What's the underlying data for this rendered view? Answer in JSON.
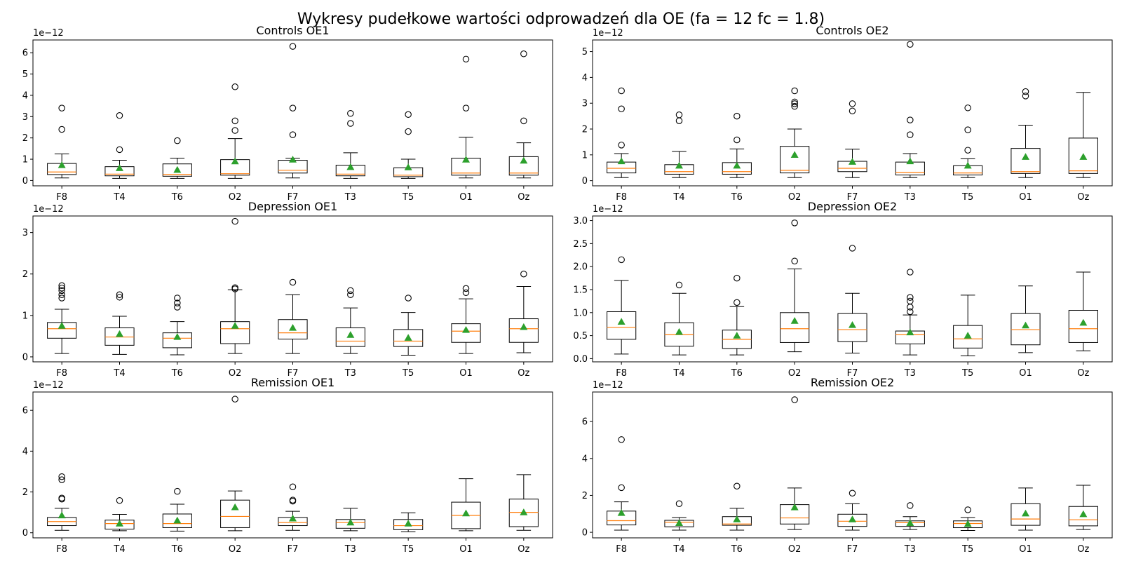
{
  "figure": {
    "title": "Wykresy pudełkowe wartości odprowadzeń dla OE (fa = 12 fc = 1.8)"
  },
  "colors": {
    "box": "#000000",
    "median": "#ff7f0e",
    "mean": "#2ca02c",
    "flier": "#000000"
  },
  "chart_data": [
    {
      "type": "box",
      "title": "Controls OE1",
      "offset_label": "1e−12",
      "categories": [
        "F8",
        "T4",
        "T6",
        "O2",
        "F7",
        "T3",
        "T5",
        "O1",
        "Oz"
      ],
      "ylim": [
        -0.25,
        6.6
      ],
      "yticks": [
        0,
        1,
        2,
        3,
        4,
        5,
        6
      ],
      "ytick_labels": [
        "0",
        "1",
        "2",
        "3",
        "4",
        "5",
        "6"
      ],
      "boxes": [
        {
          "whislo": 0.12,
          "q1": 0.28,
          "med": 0.4,
          "q3": 0.8,
          "whishi": 1.25,
          "mean": 0.72,
          "fliers": [
            2.4,
            3.4
          ]
        },
        {
          "whislo": 0.1,
          "q1": 0.22,
          "med": 0.3,
          "q3": 0.65,
          "whishi": 0.95,
          "mean": 0.58,
          "fliers": [
            1.45,
            3.05
          ]
        },
        {
          "whislo": 0.1,
          "q1": 0.2,
          "med": 0.28,
          "q3": 0.78,
          "whishi": 1.05,
          "mean": 0.5,
          "fliers": [
            1.87
          ]
        },
        {
          "whislo": 0.1,
          "q1": 0.25,
          "med": 0.32,
          "q3": 0.98,
          "whishi": 1.97,
          "mean": 0.9,
          "fliers": [
            2.35,
            2.8,
            4.4
          ]
        },
        {
          "whislo": 0.12,
          "q1": 0.35,
          "med": 0.48,
          "q3": 0.95,
          "whishi": 1.05,
          "mean": 0.98,
          "fliers": [
            2.15,
            3.4,
            6.3
          ]
        },
        {
          "whislo": 0.1,
          "q1": 0.22,
          "med": 0.3,
          "q3": 0.72,
          "whishi": 1.3,
          "mean": 0.63,
          "fliers": [
            2.68,
            3.15
          ]
        },
        {
          "whislo": 0.1,
          "q1": 0.18,
          "med": 0.25,
          "q3": 0.6,
          "whishi": 1.0,
          "mean": 0.62,
          "fliers": [
            2.3,
            3.1
          ]
        },
        {
          "whislo": 0.12,
          "q1": 0.25,
          "med": 0.35,
          "q3": 1.05,
          "whishi": 2.03,
          "mean": 0.98,
          "fliers": [
            3.4,
            5.7
          ]
        },
        {
          "whislo": 0.12,
          "q1": 0.25,
          "med": 0.35,
          "q3": 1.12,
          "whishi": 1.77,
          "mean": 0.93,
          "fliers": [
            2.8,
            5.95
          ]
        }
      ]
    },
    {
      "type": "box",
      "title": "Controls OE2",
      "offset_label": "1e−12",
      "categories": [
        "F8",
        "T4",
        "T6",
        "O2",
        "F7",
        "T3",
        "T5",
        "O1",
        "Oz"
      ],
      "ylim": [
        -0.2,
        5.45
      ],
      "yticks": [
        0,
        1,
        2,
        3,
        4,
        5
      ],
      "ytick_labels": [
        "0",
        "1",
        "2",
        "3",
        "4",
        "5"
      ],
      "boxes": [
        {
          "whislo": 0.12,
          "q1": 0.3,
          "med": 0.48,
          "q3": 0.72,
          "whishi": 1.05,
          "mean": 0.75,
          "fliers": [
            1.38,
            2.78,
            3.48
          ]
        },
        {
          "whislo": 0.12,
          "q1": 0.25,
          "med": 0.35,
          "q3": 0.62,
          "whishi": 1.13,
          "mean": 0.58,
          "fliers": [
            2.32,
            2.55
          ]
        },
        {
          "whislo": 0.12,
          "q1": 0.25,
          "med": 0.35,
          "q3": 0.7,
          "whishi": 1.23,
          "mean": 0.58,
          "fliers": [
            1.58,
            2.5
          ]
        },
        {
          "whislo": 0.12,
          "q1": 0.3,
          "med": 0.4,
          "q3": 1.33,
          "whishi": 2.0,
          "mean": 1.0,
          "fliers": [
            2.88,
            2.98,
            3.05,
            3.48
          ]
        },
        {
          "whislo": 0.12,
          "q1": 0.35,
          "med": 0.48,
          "q3": 0.75,
          "whishi": 1.22,
          "mean": 0.73,
          "fliers": [
            2.7,
            2.98
          ]
        },
        {
          "whislo": 0.12,
          "q1": 0.22,
          "med": 0.32,
          "q3": 0.72,
          "whishi": 1.05,
          "mean": 0.75,
          "fliers": [
            1.78,
            2.35,
            5.28
          ]
        },
        {
          "whislo": 0.12,
          "q1": 0.22,
          "med": 0.3,
          "q3": 0.58,
          "whishi": 0.85,
          "mean": 0.58,
          "fliers": [
            1.18,
            1.97,
            2.82
          ]
        },
        {
          "whislo": 0.12,
          "q1": 0.28,
          "med": 0.35,
          "q3": 1.25,
          "whishi": 2.15,
          "mean": 0.92,
          "fliers": [
            3.28,
            3.45
          ]
        },
        {
          "whislo": 0.12,
          "q1": 0.28,
          "med": 0.38,
          "q3": 1.65,
          "whishi": 3.42,
          "mean": 0.92,
          "fliers": []
        }
      ]
    },
    {
      "type": "box",
      "title": "Depression OE1",
      "offset_label": "1e−12",
      "categories": [
        "F8",
        "T4",
        "T6",
        "O2",
        "F7",
        "T3",
        "T5",
        "O1",
        "Oz"
      ],
      "ylim": [
        -0.12,
        3.4
      ],
      "yticks": [
        0,
        1,
        2,
        3
      ],
      "ytick_labels": [
        "0",
        "1",
        "2",
        "3"
      ],
      "boxes": [
        {
          "whislo": 0.08,
          "q1": 0.45,
          "med": 0.68,
          "q3": 0.83,
          "whishi": 1.15,
          "mean": 0.75,
          "fliers": [
            1.42,
            1.5,
            1.6,
            1.66,
            1.72
          ]
        },
        {
          "whislo": 0.06,
          "q1": 0.28,
          "med": 0.48,
          "q3": 0.7,
          "whishi": 0.98,
          "mean": 0.55,
          "fliers": [
            1.44,
            1.5
          ]
        },
        {
          "whislo": 0.05,
          "q1": 0.22,
          "med": 0.45,
          "q3": 0.58,
          "whishi": 0.85,
          "mean": 0.48,
          "fliers": [
            1.2,
            1.3,
            1.42
          ]
        },
        {
          "whislo": 0.08,
          "q1": 0.32,
          "med": 0.68,
          "q3": 0.85,
          "whishi": 1.62,
          "mean": 0.75,
          "fliers": [
            1.64,
            1.67,
            3.27
          ]
        },
        {
          "whislo": 0.08,
          "q1": 0.43,
          "med": 0.58,
          "q3": 0.9,
          "whishi": 1.5,
          "mean": 0.7,
          "fliers": [
            1.8
          ]
        },
        {
          "whislo": 0.08,
          "q1": 0.25,
          "med": 0.38,
          "q3": 0.7,
          "whishi": 1.18,
          "mean": 0.53,
          "fliers": [
            1.5,
            1.6
          ]
        },
        {
          "whislo": 0.04,
          "q1": 0.25,
          "med": 0.38,
          "q3": 0.66,
          "whishi": 1.07,
          "mean": 0.46,
          "fliers": [
            1.42
          ]
        },
        {
          "whislo": 0.08,
          "q1": 0.35,
          "med": 0.62,
          "q3": 0.8,
          "whishi": 1.4,
          "mean": 0.65,
          "fliers": [
            1.55,
            1.65
          ]
        },
        {
          "whislo": 0.1,
          "q1": 0.35,
          "med": 0.68,
          "q3": 0.92,
          "whishi": 1.7,
          "mean": 0.72,
          "fliers": [
            2.0
          ]
        }
      ]
    },
    {
      "type": "box",
      "title": "Depression OE2",
      "offset_label": "1e−12",
      "categories": [
        "F8",
        "T4",
        "T6",
        "O2",
        "F7",
        "T3",
        "T5",
        "O1",
        "Oz"
      ],
      "ylim": [
        -0.07,
        3.1
      ],
      "yticks": [
        0,
        0.5,
        1,
        1.5,
        2,
        2.5,
        3
      ],
      "ytick_labels": [
        "0.0",
        "0.5",
        "1.0",
        "1.5",
        "2.0",
        "2.5",
        "3.0"
      ],
      "boxes": [
        {
          "whislo": 0.1,
          "q1": 0.42,
          "med": 0.68,
          "q3": 1.02,
          "whishi": 1.7,
          "mean": 0.8,
          "fliers": [
            2.15
          ]
        },
        {
          "whislo": 0.08,
          "q1": 0.27,
          "med": 0.52,
          "q3": 0.78,
          "whishi": 1.42,
          "mean": 0.58,
          "fliers": [
            1.6
          ]
        },
        {
          "whislo": 0.08,
          "q1": 0.22,
          "med": 0.42,
          "q3": 0.62,
          "whishi": 1.13,
          "mean": 0.5,
          "fliers": [
            1.22,
            1.75
          ]
        },
        {
          "whislo": 0.15,
          "q1": 0.35,
          "med": 0.65,
          "q3": 1.0,
          "whishi": 1.95,
          "mean": 0.82,
          "fliers": [
            2.12,
            2.95
          ]
        },
        {
          "whislo": 0.12,
          "q1": 0.37,
          "med": 0.63,
          "q3": 0.98,
          "whishi": 1.42,
          "mean": 0.73,
          "fliers": [
            2.4
          ]
        },
        {
          "whislo": 0.08,
          "q1": 0.32,
          "med": 0.52,
          "q3": 0.6,
          "whishi": 0.95,
          "mean": 0.57,
          "fliers": [
            1.02,
            1.12,
            1.25,
            1.33,
            1.88
          ]
        },
        {
          "whislo": 0.06,
          "q1": 0.23,
          "med": 0.43,
          "q3": 0.72,
          "whishi": 1.38,
          "mean": 0.5,
          "fliers": []
        },
        {
          "whislo": 0.13,
          "q1": 0.3,
          "med": 0.63,
          "q3": 0.98,
          "whishi": 1.58,
          "mean": 0.72,
          "fliers": []
        },
        {
          "whislo": 0.17,
          "q1": 0.35,
          "med": 0.65,
          "q3": 1.05,
          "whishi": 1.88,
          "mean": 0.78,
          "fliers": []
        }
      ]
    },
    {
      "type": "box",
      "title": "Remission OE1",
      "offset_label": "1e−12",
      "categories": [
        "F8",
        "T4",
        "T6",
        "O2",
        "F7",
        "T3",
        "T5",
        "O1",
        "Oz"
      ],
      "ylim": [
        -0.25,
        6.9
      ],
      "yticks": [
        0,
        2,
        4,
        6
      ],
      "ytick_labels": [
        "0",
        "2",
        "4",
        "6"
      ],
      "boxes": [
        {
          "whislo": 0.12,
          "q1": 0.35,
          "med": 0.55,
          "q3": 0.75,
          "whishi": 1.2,
          "mean": 0.85,
          "fliers": [
            1.65,
            1.7,
            2.6,
            2.75
          ]
        },
        {
          "whislo": 0.1,
          "q1": 0.18,
          "med": 0.45,
          "q3": 0.62,
          "whishi": 0.9,
          "mean": 0.45,
          "fliers": [
            1.58
          ]
        },
        {
          "whislo": 0.08,
          "q1": 0.25,
          "med": 0.45,
          "q3": 0.92,
          "whishi": 1.4,
          "mean": 0.6,
          "fliers": [
            2.03
          ]
        },
        {
          "whislo": 0.1,
          "q1": 0.25,
          "med": 0.8,
          "q3": 1.6,
          "whishi": 2.05,
          "mean": 1.25,
          "fliers": [
            6.55
          ]
        },
        {
          "whislo": 0.12,
          "q1": 0.35,
          "med": 0.5,
          "q3": 0.75,
          "whishi": 1.05,
          "mean": 0.7,
          "fliers": [
            1.55,
            1.6,
            2.25
          ]
        },
        {
          "whislo": 0.1,
          "q1": 0.22,
          "med": 0.5,
          "q3": 0.65,
          "whishi": 1.2,
          "mean": 0.5,
          "fliers": []
        },
        {
          "whislo": 0.05,
          "q1": 0.15,
          "med": 0.35,
          "q3": 0.65,
          "whishi": 0.98,
          "mean": 0.45,
          "fliers": []
        },
        {
          "whislo": 0.1,
          "q1": 0.2,
          "med": 0.85,
          "q3": 1.5,
          "whishi": 2.65,
          "mean": 0.95,
          "fliers": []
        },
        {
          "whislo": 0.12,
          "q1": 0.3,
          "med": 1.0,
          "q3": 1.65,
          "whishi": 2.85,
          "mean": 1.0,
          "fliers": []
        }
      ]
    },
    {
      "type": "box",
      "title": "Remission OE2",
      "offset_label": "1e−12",
      "categories": [
        "F8",
        "T4",
        "T6",
        "O2",
        "F7",
        "T3",
        "T5",
        "O1",
        "Oz"
      ],
      "ylim": [
        -0.3,
        7.6
      ],
      "yticks": [
        0,
        2,
        4,
        6
      ],
      "ytick_labels": [
        "0",
        "2",
        "4",
        "6"
      ],
      "boxes": [
        {
          "whislo": 0.12,
          "q1": 0.4,
          "med": 0.63,
          "q3": 1.15,
          "whishi": 1.65,
          "mean": 1.05,
          "fliers": [
            2.42,
            5.02
          ]
        },
        {
          "whislo": 0.12,
          "q1": 0.3,
          "med": 0.55,
          "q3": 0.65,
          "whishi": 0.8,
          "mean": 0.5,
          "fliers": [
            1.55
          ]
        },
        {
          "whislo": 0.12,
          "q1": 0.38,
          "med": 0.45,
          "q3": 0.85,
          "whishi": 1.3,
          "mean": 0.7,
          "fliers": [
            2.5
          ]
        },
        {
          "whislo": 0.15,
          "q1": 0.45,
          "med": 0.78,
          "q3": 1.5,
          "whishi": 2.4,
          "mean": 1.35,
          "fliers": [
            7.18
          ]
        },
        {
          "whislo": 0.12,
          "q1": 0.32,
          "med": 0.6,
          "q3": 0.98,
          "whishi": 1.55,
          "mean": 0.7,
          "fliers": [
            2.12
          ]
        },
        {
          "whislo": 0.15,
          "q1": 0.32,
          "med": 0.52,
          "q3": 0.62,
          "whishi": 0.85,
          "mean": 0.5,
          "fliers": [
            1.45
          ]
        },
        {
          "whislo": 0.1,
          "q1": 0.25,
          "med": 0.48,
          "q3": 0.62,
          "whishi": 0.8,
          "mean": 0.45,
          "fliers": [
            1.22
          ]
        },
        {
          "whislo": 0.12,
          "q1": 0.38,
          "med": 0.72,
          "q3": 1.55,
          "whishi": 2.4,
          "mean": 1.02,
          "fliers": []
        },
        {
          "whislo": 0.15,
          "q1": 0.35,
          "med": 0.68,
          "q3": 1.4,
          "whishi": 2.55,
          "mean": 0.98,
          "fliers": []
        }
      ]
    }
  ]
}
